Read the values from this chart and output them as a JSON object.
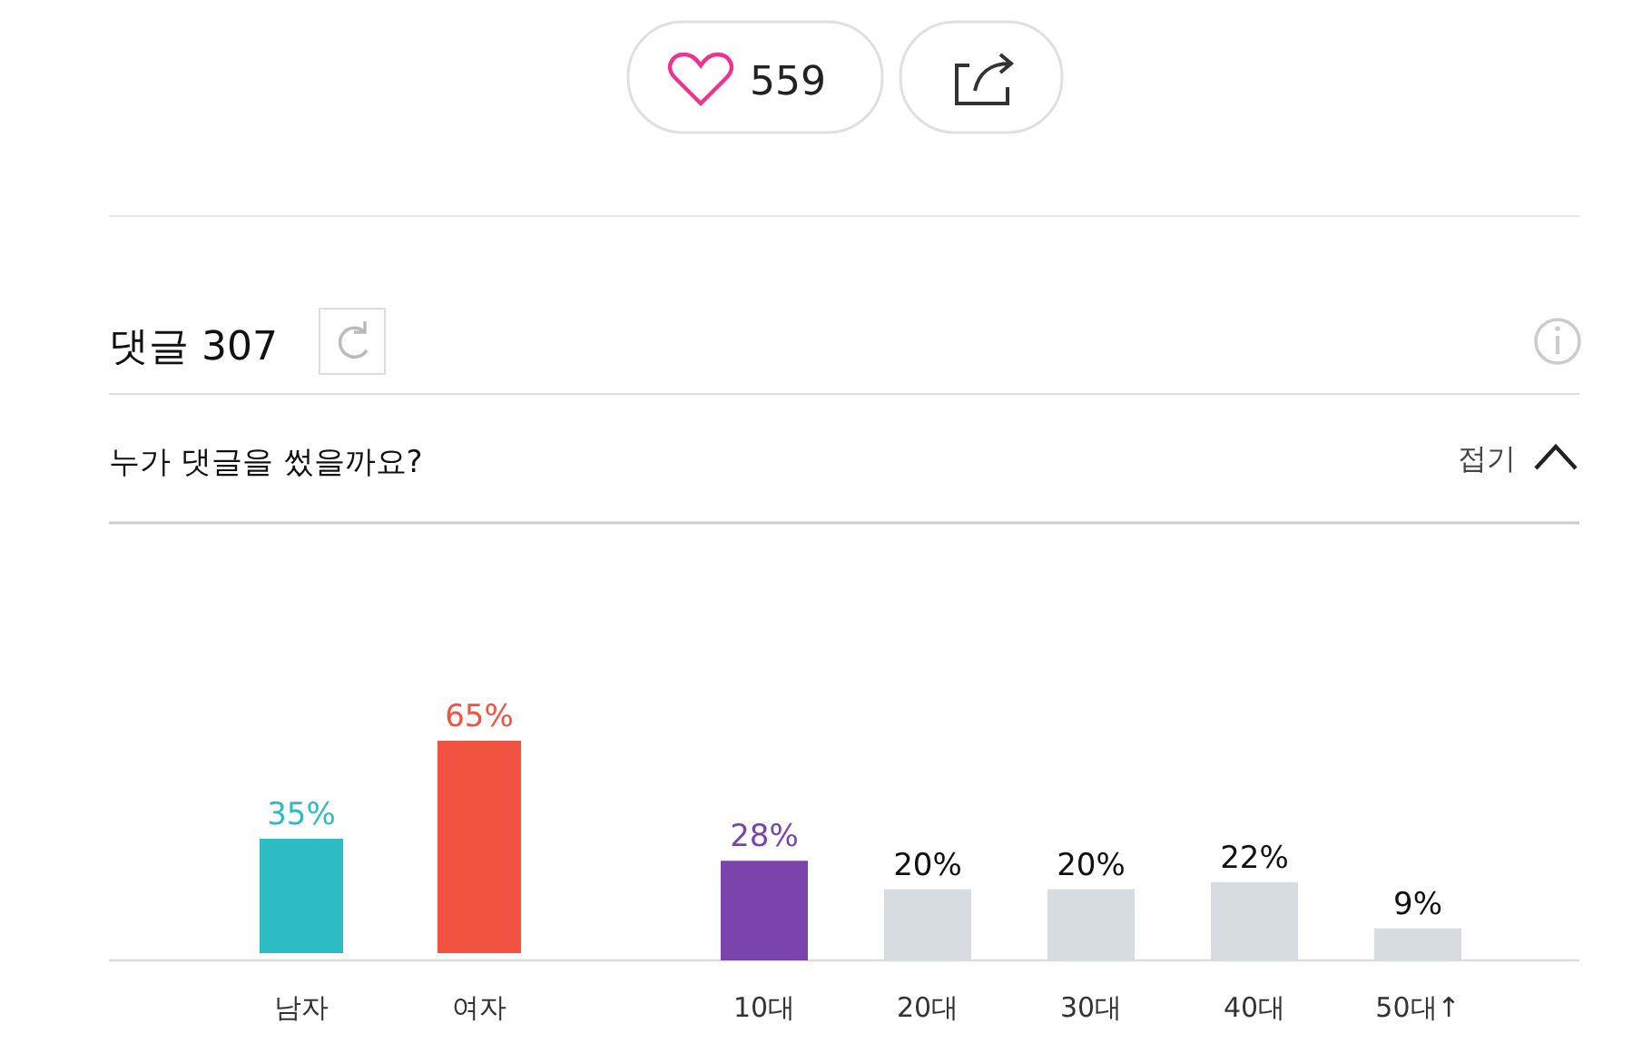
{
  "chart_data": [
    {
      "type": "other",
      "title": "댓글 307",
      "subtitle": "누가 댓글을 썼을까요?",
      "annotations": [
        "559",
        "접기"
      ]
    },
    {
      "type": "bar",
      "categories": [
        "남자",
        "여자"
      ],
      "values": [
        35,
        65
      ],
      "value_labels": [
        "35%",
        "65%"
      ],
      "colors": [
        "#2ebcc4",
        "#f15340"
      ]
    },
    {
      "type": "bar",
      "categories": [
        "10대",
        "20대",
        "30대",
        "40대",
        "50대↑"
      ],
      "values": [
        28,
        20,
        20,
        22,
        9
      ],
      "value_labels": [
        "28%",
        "20%",
        "20%",
        "22%",
        "9%"
      ],
      "colors": [
        "#7b44ad",
        "#d6dce0",
        "#d6dce0",
        "#d6dce0",
        "#d6dce0"
      ]
    }
  ]
}
